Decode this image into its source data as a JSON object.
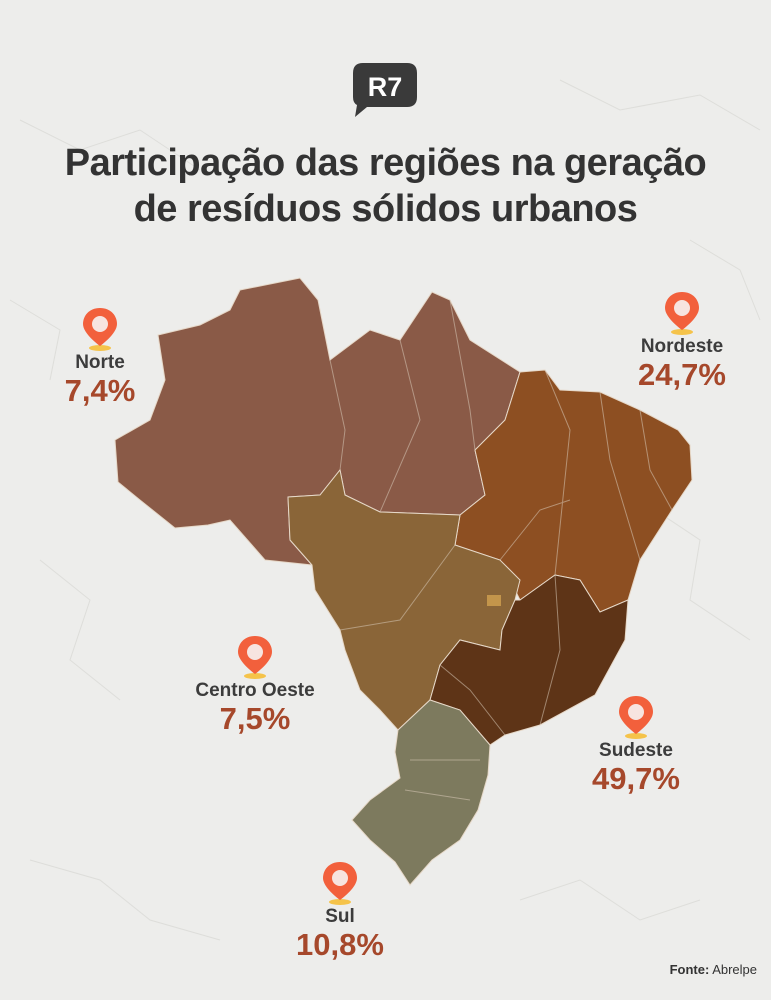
{
  "brand": {
    "logo_text": "R7"
  },
  "title": {
    "line1": "Participação das regiões na geração",
    "line2": "de resíduos sólidos urbanos"
  },
  "regions": [
    {
      "name": "Norte",
      "value": "7,4%",
      "color": "#8a5a47"
    },
    {
      "name": "Nordeste",
      "value": "24,7%",
      "color": "#8d4f22"
    },
    {
      "name": "Centro Oeste",
      "value": "7,5%",
      "color": "#8a6538"
    },
    {
      "name": "Sudeste",
      "value": "49,7%",
      "color": "#5e3417"
    },
    {
      "name": "Sul",
      "value": "10,8%",
      "color": "#7d7a5e"
    }
  ],
  "colors": {
    "title": "#333333",
    "value": "#a6482b",
    "pin": "#f2603c"
  },
  "icons": {
    "pin": "map-pin-icon",
    "logo": "r7-logo-icon"
  },
  "source": {
    "label": "Fonte:",
    "value": "Abrelpe"
  }
}
